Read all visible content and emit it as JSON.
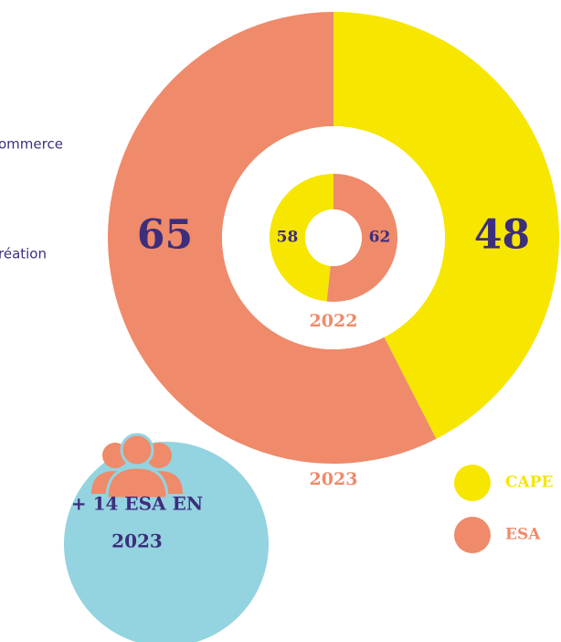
{
  "chart_data": [
    {
      "type": "donut",
      "title": "2023",
      "categories": [
        "CAPE",
        "ESA"
      ],
      "values": [
        48,
        65
      ],
      "colors": [
        "#f7e600",
        "#ef8a6a"
      ],
      "clockwise": true,
      "annotations": [
        "ommerce",
        "réation"
      ],
      "callout": "+ 14 ESA EN 2023"
    },
    {
      "type": "donut",
      "title": "2022",
      "categories": [
        "CAPE",
        "ESA"
      ],
      "values": [
        58,
        62
      ],
      "colors": [
        "#f7e600",
        "#ef8a6a"
      ],
      "clockwise": false
    }
  ]
}
